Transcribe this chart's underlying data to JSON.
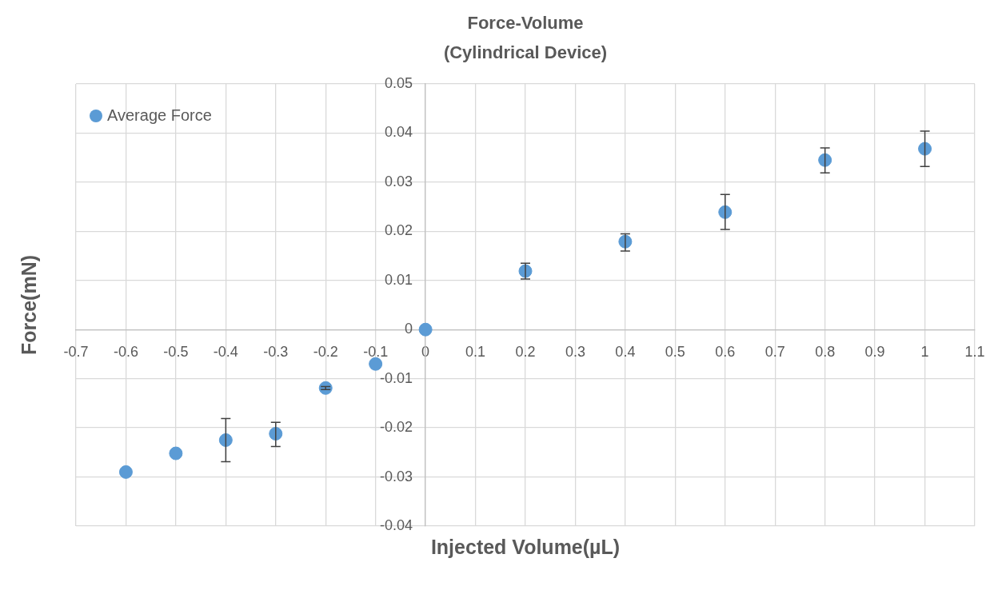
{
  "chart_data": {
    "type": "scatter",
    "title": "Force-Volume\n(Cylindrical Device)",
    "xlabel": "Injected Volume(µL)",
    "ylabel": "Force(mN)",
    "x": [
      -0.6,
      -0.5,
      -0.4,
      -0.3,
      -0.2,
      -0.1,
      0,
      0.2,
      0.4,
      0.6,
      0.8,
      1
    ],
    "series": [
      {
        "name": "Average Force",
        "color": "#5b9bd5",
        "values": [
          -0.029,
          -0.0252,
          -0.0225,
          -0.0212,
          -0.0119,
          -0.007,
          0,
          0.0119,
          0.0179,
          0.0239,
          0.0345,
          0.0368
        ],
        "errors": [
          null,
          null,
          [
            -0.0269,
            -0.0181
          ],
          [
            -0.0238,
            -0.0189
          ],
          [
            -0.0122,
            -0.0116
          ],
          null,
          null,
          [
            0.0103,
            0.0135
          ],
          [
            0.016,
            0.0195
          ],
          [
            0.0204,
            0.0275
          ],
          [
            0.0319,
            0.037
          ],
          [
            0.0332,
            0.0404
          ]
        ]
      }
    ],
    "xlim": [
      -0.7,
      1.1
    ],
    "xticks": [
      -0.7,
      -0.6,
      -0.5,
      -0.4,
      -0.3,
      -0.2,
      -0.1,
      0,
      0.1,
      0.2,
      0.3,
      0.4,
      0.5,
      0.6,
      0.7,
      0.8,
      0.9,
      1,
      1.1
    ],
    "ylim": [
      -0.04,
      0.05
    ],
    "yticks": [
      -0.04,
      -0.03,
      -0.02,
      -0.01,
      0,
      0.01,
      0.02,
      0.03,
      0.04,
      0.05
    ],
    "grid": true,
    "legend": "top left",
    "marker": "circle"
  }
}
